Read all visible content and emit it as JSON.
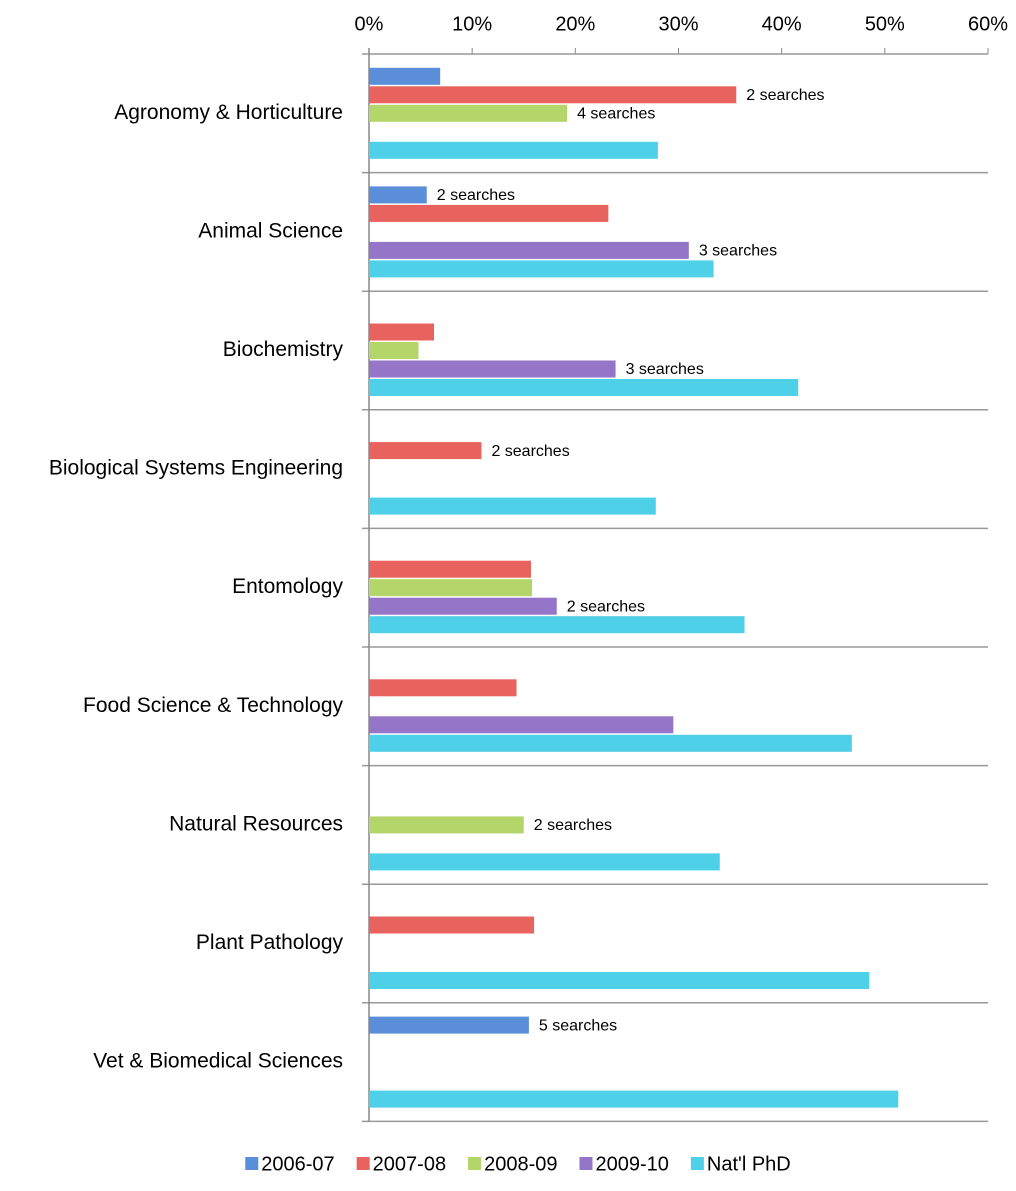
{
  "chart_data": {
    "type": "bar",
    "orientation": "horizontal",
    "categories": [
      "Agronomy & Horticulture",
      "Animal Science",
      "Biochemistry",
      "Biological Systems Engineering",
      "Entomology",
      "Food Science & Technology",
      "Natural Resources",
      "Plant Pathology",
      "Vet & Biomedical Sciences"
    ],
    "series": [
      {
        "name": "2006-07",
        "color": "#5b8ed8",
        "values": [
          6.9,
          5.6,
          null,
          null,
          null,
          null,
          null,
          null,
          15.5
        ],
        "annotations": [
          null,
          "2 searches",
          null,
          null,
          null,
          null,
          null,
          null,
          "5 searches"
        ]
      },
      {
        "name": "2007-08",
        "color": "#e8625e",
        "values": [
          35.6,
          23.2,
          6.3,
          10.9,
          15.7,
          14.3,
          null,
          16.0,
          null
        ],
        "annotations": [
          "2 searches",
          null,
          null,
          "2 searches",
          null,
          null,
          null,
          null,
          null
        ]
      },
      {
        "name": "2008-09",
        "color": "#b3d56a",
        "values": [
          19.2,
          null,
          4.8,
          null,
          15.8,
          null,
          15.0,
          null,
          null
        ],
        "annotations": [
          "4 searches",
          null,
          null,
          null,
          null,
          null,
          "2 searches",
          null,
          null
        ]
      },
      {
        "name": "2009-10",
        "color": "#9575c7",
        "values": [
          null,
          31.0,
          23.9,
          null,
          18.2,
          29.5,
          null,
          null,
          null
        ],
        "annotations": [
          null,
          "3 searches",
          "3 searches",
          null,
          "2 searches",
          null,
          null,
          null,
          null
        ]
      },
      {
        "name": "Nat'l PhD",
        "color": "#4dd0e8",
        "values": [
          28.0,
          33.4,
          41.6,
          27.8,
          36.4,
          46.8,
          34.0,
          48.5,
          51.3
        ],
        "annotations": [
          null,
          null,
          null,
          null,
          null,
          null,
          null,
          null,
          null
        ]
      }
    ],
    "xlim": [
      0,
      60
    ],
    "xticks": [
      {
        "value": 0,
        "label": "0%"
      },
      {
        "value": 10,
        "label": "10%"
      },
      {
        "value": 20,
        "label": "20%"
      },
      {
        "value": 30,
        "label": "30%"
      },
      {
        "value": 40,
        "label": "40%"
      },
      {
        "value": 50,
        "label": "50%"
      },
      {
        "value": 60,
        "label": "60%"
      }
    ],
    "legend": "bottom"
  }
}
